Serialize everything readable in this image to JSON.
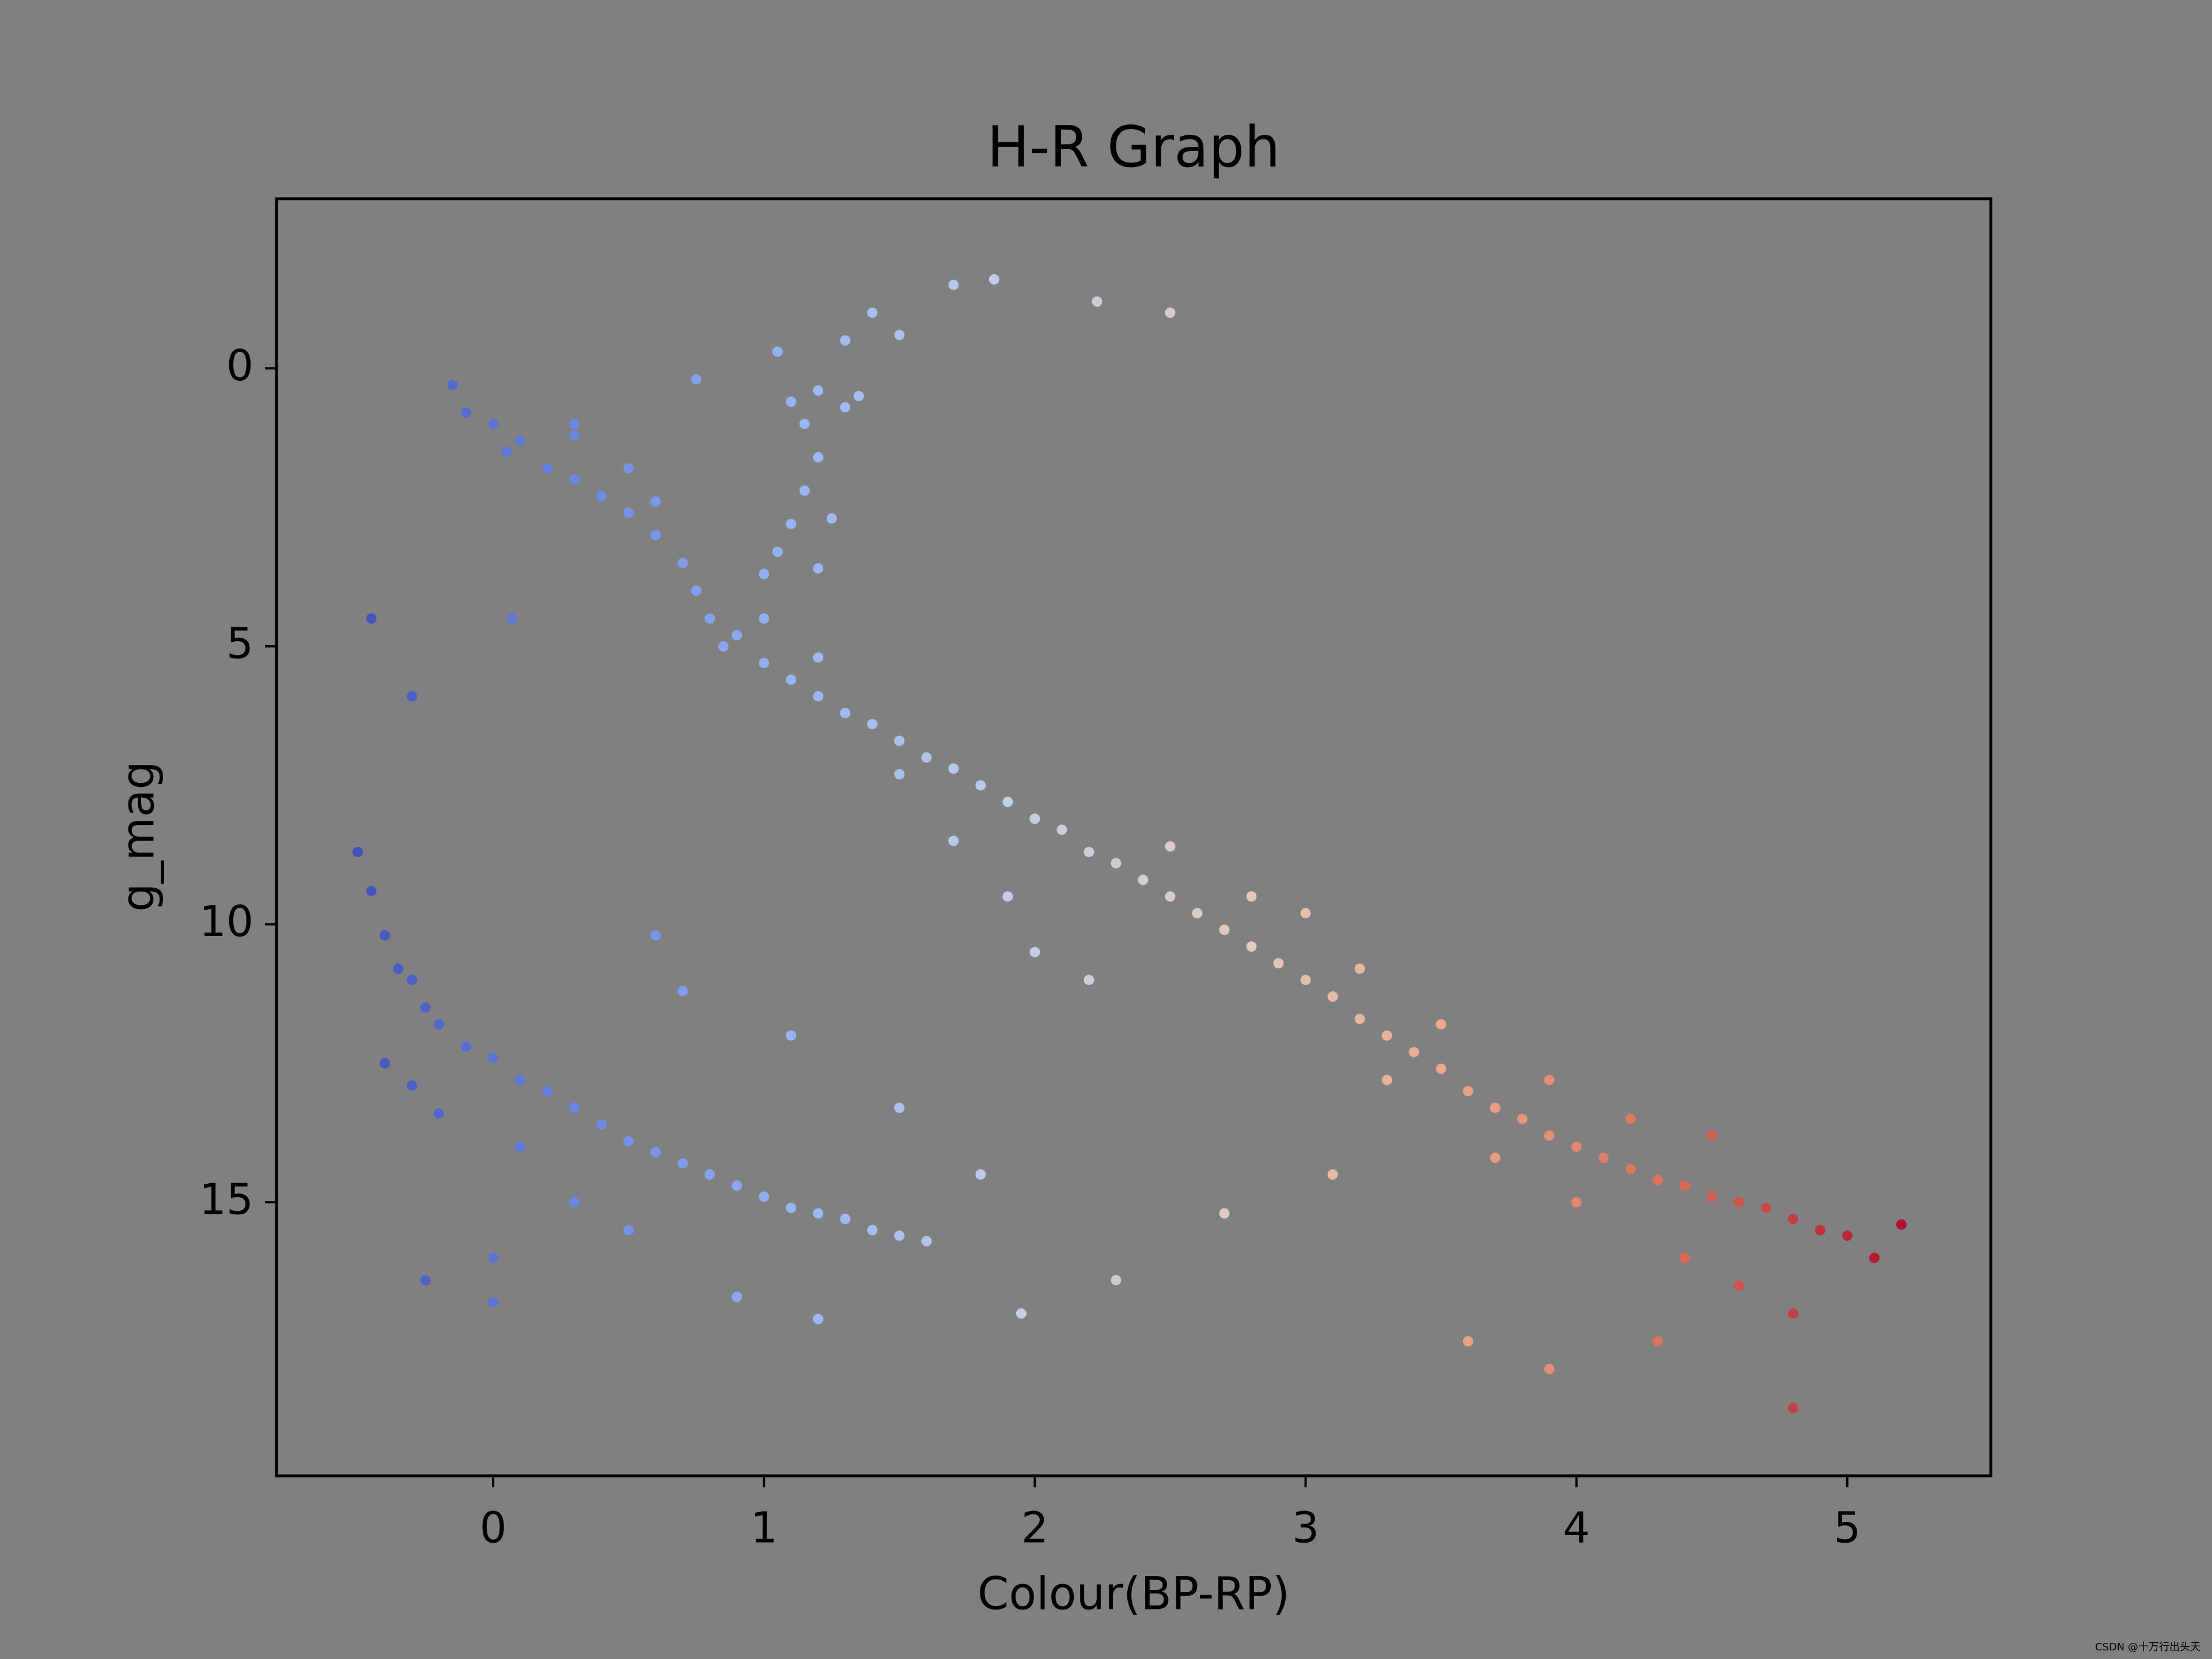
{
  "chart_data": {
    "type": "scatter",
    "title": "H-R Graph",
    "x_label": "Colour(BP-RP)",
    "y_label": "g_mag",
    "watermark": "CSDN @十万行出头天",
    "colormap": [
      "#3b4cc0",
      "#6788ee",
      "#9abbff",
      "#c9d7f0",
      "#edd1c2",
      "#f7a889",
      "#e26952",
      "#b40426"
    ],
    "xlim": [
      -0.8,
      5.53
    ],
    "ylim": [
      19.92,
      -3.05
    ],
    "xticks": [
      0,
      1,
      2,
      3,
      4,
      5
    ],
    "yticks": [
      0,
      5,
      10,
      15
    ],
    "x": [
      -0.15,
      -0.1,
      0,
      0.05,
      0.1,
      0.2,
      0.3,
      0.4,
      0.5,
      0.6,
      0.7,
      0.75,
      0.8,
      0.85,
      0.9,
      1.0,
      1.1,
      1.2,
      1.3,
      1.4,
      1.5,
      1.6,
      1.7,
      1.8,
      1.9,
      2.0,
      2.1,
      2.2,
      2.3,
      2.4,
      2.5,
      2.6,
      2.7,
      2.8,
      2.9,
      3.0,
      3.1,
      3.2,
      3.3,
      3.4,
      3.5,
      3.6,
      3.7,
      3.8,
      3.9,
      4.0,
      4.1,
      4.2,
      4.3,
      4.4,
      4.5,
      4.6,
      4.7,
      4.8,
      4.9,
      5.0,
      5.1,
      5.2,
      0.3,
      0.5,
      0.6,
      1.0,
      1.2,
      1.5,
      1.7,
      1.9,
      2.0,
      2.2,
      2.5,
      2.8,
      3.0,
      3.2,
      3.3,
      3.5,
      3.7,
      3.9,
      4.0,
      4.2,
      4.4,
      4.5,
      4.6,
      4.8,
      3.6,
      3.9,
      4.8,
      2.7,
      2.3,
      3.1,
      4.3,
      1.1,
      1.2,
      1.3,
      1.35,
      1.15,
      1.2,
      1.15,
      1.1,
      1.05,
      1.2,
      1.0,
      1.3,
      1.4,
      1.5,
      1.7,
      1.85,
      2.23,
      2.5,
      1.05,
      0.75,
      1.25,
      -0.45,
      -0.3,
      0.07,
      0.3,
      -0.5,
      -0.45,
      -0.4,
      -0.35,
      -0.3,
      -0.25,
      -0.2,
      -0.1,
      0,
      0.1,
      0.2,
      0.3,
      0.4,
      0.5,
      0.6,
      0.7,
      0.8,
      0.9,
      1.0,
      1.1,
      1.2,
      1.3,
      1.4,
      1.5,
      1.6,
      -0.4,
      -0.3,
      -0.2,
      0.1,
      0.3,
      0.5,
      0.0,
      -0.25,
      0.0,
      0.9,
      1.2,
      0.7,
      1.1,
      1.5,
      1.8,
      0.6,
      1.95
    ],
    "y": [
      0.3,
      0.8,
      1.0,
      1.5,
      1.3,
      1.8,
      2.0,
      2.3,
      2.6,
      3.0,
      3.5,
      4.0,
      4.5,
      5.0,
      4.8,
      5.3,
      5.6,
      5.9,
      6.2,
      6.4,
      6.7,
      7.0,
      7.2,
      7.5,
      7.8,
      8.1,
      8.3,
      8.7,
      8.9,
      9.2,
      9.5,
      9.8,
      10.1,
      10.4,
      10.7,
      11.0,
      11.3,
      11.7,
      12.0,
      12.3,
      12.6,
      13.0,
      13.3,
      13.5,
      13.8,
      14.0,
      14.2,
      14.4,
      14.6,
      14.7,
      14.9,
      15.0,
      15.1,
      15.3,
      15.5,
      15.6,
      16.0,
      15.4,
      1.2,
      1.8,
      2.4,
      4.5,
      5.2,
      7.3,
      8.5,
      9.5,
      10.5,
      11.0,
      8.6,
      9.5,
      9.8,
      10.8,
      12.8,
      11.8,
      14.2,
      12.8,
      15.0,
      13.5,
      16.0,
      13.8,
      16.5,
      17.0,
      17.5,
      18.0,
      18.7,
      15.2,
      16.4,
      14.5,
      17.5,
      0.6,
      0.4,
      0.7,
      0.5,
      1.0,
      1.6,
      2.2,
      2.8,
      3.3,
      3.6,
      3.7,
      -0.5,
      -1.0,
      -0.6,
      -1.5,
      -1.6,
      -1.2,
      -1.0,
      -0.3,
      0.2,
      2.7,
      4.5,
      5.9,
      4.5,
      1.0,
      8.7,
      9.4,
      10.2,
      10.8,
      11.0,
      11.5,
      11.8,
      12.2,
      12.4,
      12.8,
      13.0,
      13.3,
      13.6,
      13.9,
      14.1,
      14.3,
      14.5,
      14.7,
      14.9,
      15.1,
      15.2,
      15.3,
      15.5,
      15.6,
      15.7,
      12.5,
      12.9,
      13.4,
      14.0,
      15.0,
      15.5,
      16.0,
      16.4,
      16.8,
      16.7,
      17.1,
      11.2,
      12.0,
      13.3,
      14.5,
      10.2,
      17.0
    ]
  }
}
